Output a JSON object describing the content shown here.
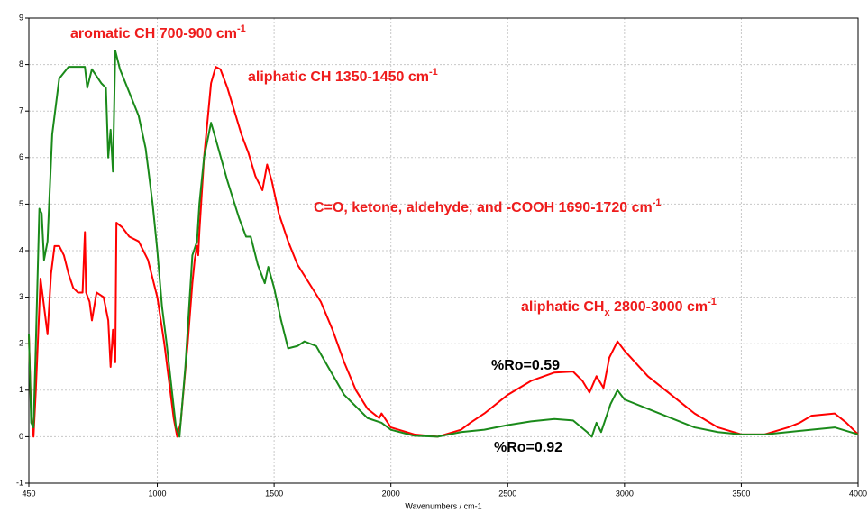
{
  "chart_data": {
    "type": "line",
    "xlabel": "Wavenumbers / cm-1",
    "xlim": [
      450,
      4000
    ],
    "xticks": [
      450,
      1000,
      1500,
      2000,
      2500,
      3000,
      3500,
      4000
    ],
    "ylim": [
      -1,
      9
    ],
    "yticks": [
      -1,
      0,
      1,
      2,
      3,
      4,
      5,
      6,
      7,
      8,
      9
    ],
    "grid": true,
    "annotations": [
      {
        "color": "#ee1c1c",
        "parts": [
          {
            "text": "aromatic CH 700-900 cm"
          },
          {
            "text": "-1",
            "shift": "super"
          }
        ]
      },
      {
        "color": "#ee1c1c",
        "parts": [
          {
            "text": "aliphatic CH 1350-1450 cm"
          },
          {
            "text": "-1",
            "shift": "super"
          }
        ]
      },
      {
        "color": "#ee1c1c",
        "parts": [
          {
            "text": "C=O, ketone, aldehyde, and -COOH 1690-1720 cm"
          },
          {
            "text": "-1",
            "shift": "super"
          }
        ]
      },
      {
        "color": "#ee1c1c",
        "parts": [
          {
            "text": "aliphatic CH"
          },
          {
            "text": "x",
            "shift": "sub"
          },
          {
            "text": " 2800-3000  cm"
          },
          {
            "text": "-1",
            "shift": "super"
          }
        ]
      }
    ],
    "series": [
      {
        "name": "%Ro=0.59",
        "color": "#ff0000",
        "x": [
          450,
          460,
          470,
          480,
          500,
          515,
          530,
          545,
          560,
          580,
          600,
          620,
          640,
          660,
          680,
          690,
          695,
          710,
          720,
          740,
          770,
          790,
          800,
          810,
          820,
          825,
          850,
          880,
          920,
          960,
          1000,
          1030,
          1050,
          1070,
          1085,
          1100,
          1130,
          1150,
          1160,
          1170,
          1175,
          1180,
          1200,
          1230,
          1250,
          1270,
          1300,
          1330,
          1360,
          1390,
          1420,
          1450,
          1470,
          1490,
          1520,
          1560,
          1600,
          1650,
          1700,
          1750,
          1800,
          1850,
          1900,
          1950,
          1960,
          2000,
          2100,
          2200,
          2300,
          2340,
          2400,
          2500,
          2600,
          2700,
          2780,
          2820,
          2850,
          2880,
          2910,
          2935,
          2970,
          3000,
          3100,
          3200,
          3300,
          3400,
          3500,
          3600,
          3700,
          3750,
          3800,
          3900,
          3950,
          4000
        ],
        "values": [
          2.2,
          0.5,
          0.0,
          1.0,
          3.4,
          2.8,
          2.2,
          3.5,
          4.1,
          4.1,
          3.9,
          3.5,
          3.2,
          3.1,
          3.1,
          4.4,
          3.1,
          2.9,
          2.5,
          3.1,
          3.0,
          2.5,
          1.5,
          2.3,
          1.6,
          4.6,
          4.5,
          4.3,
          4.2,
          3.8,
          3.0,
          2.0,
          1.2,
          0.4,
          0.0,
          0.3,
          2.0,
          3.3,
          3.8,
          4.1,
          3.9,
          4.4,
          6.0,
          7.6,
          7.95,
          7.9,
          7.5,
          7.0,
          6.5,
          6.1,
          5.6,
          5.3,
          5.85,
          5.5,
          4.8,
          4.2,
          3.7,
          3.3,
          2.9,
          2.3,
          1.6,
          1.0,
          0.6,
          0.4,
          0.5,
          0.2,
          0.05,
          0.0,
          0.15,
          0.3,
          0.5,
          0.9,
          1.2,
          1.38,
          1.4,
          1.2,
          0.95,
          1.3,
          1.05,
          1.7,
          2.05,
          1.85,
          1.3,
          0.9,
          0.5,
          0.2,
          0.05,
          0.05,
          0.2,
          0.3,
          0.45,
          0.5,
          0.3,
          0.05
        ]
      },
      {
        "name": "%Ro=0.92",
        "color": "#1a8a1a",
        "x": [
          450,
          460,
          470,
          480,
          495,
          505,
          515,
          530,
          550,
          580,
          620,
          660,
          690,
          700,
          720,
          760,
          780,
          790,
          800,
          810,
          820,
          840,
          880,
          920,
          950,
          980,
          1000,
          1020,
          1040,
          1060,
          1080,
          1095,
          1120,
          1150,
          1170,
          1180,
          1200,
          1230,
          1250,
          1300,
          1350,
          1380,
          1400,
          1430,
          1460,
          1475,
          1500,
          1530,
          1560,
          1600,
          1630,
          1680,
          1720,
          1800,
          1900,
          1960,
          2000,
          2100,
          2200,
          2300,
          2400,
          2500,
          2600,
          2700,
          2780,
          2840,
          2860,
          2880,
          2900,
          2940,
          2970,
          3000,
          3100,
          3200,
          3300,
          3400,
          3500,
          3600,
          3700,
          3800,
          3900,
          4000
        ],
        "values": [
          2.2,
          0.3,
          0.2,
          2.0,
          4.9,
          4.8,
          3.8,
          4.2,
          6.5,
          7.7,
          7.95,
          7.95,
          7.95,
          7.5,
          7.9,
          7.6,
          7.5,
          6.0,
          6.6,
          5.7,
          8.3,
          7.9,
          7.4,
          6.9,
          6.2,
          5.0,
          4.0,
          2.8,
          2.0,
          1.1,
          0.2,
          0.0,
          1.5,
          3.9,
          4.2,
          5.0,
          6.0,
          6.75,
          6.4,
          5.5,
          4.7,
          4.3,
          4.3,
          3.7,
          3.3,
          3.65,
          3.2,
          2.5,
          1.9,
          1.95,
          2.05,
          1.95,
          1.6,
          0.9,
          0.4,
          0.3,
          0.15,
          0.02,
          0.0,
          0.1,
          0.15,
          0.25,
          0.33,
          0.38,
          0.35,
          0.1,
          0.0,
          0.3,
          0.1,
          0.7,
          1.0,
          0.8,
          0.6,
          0.4,
          0.2,
          0.1,
          0.05,
          0.05,
          0.1,
          0.15,
          0.2,
          0.05
        ]
      }
    ]
  }
}
